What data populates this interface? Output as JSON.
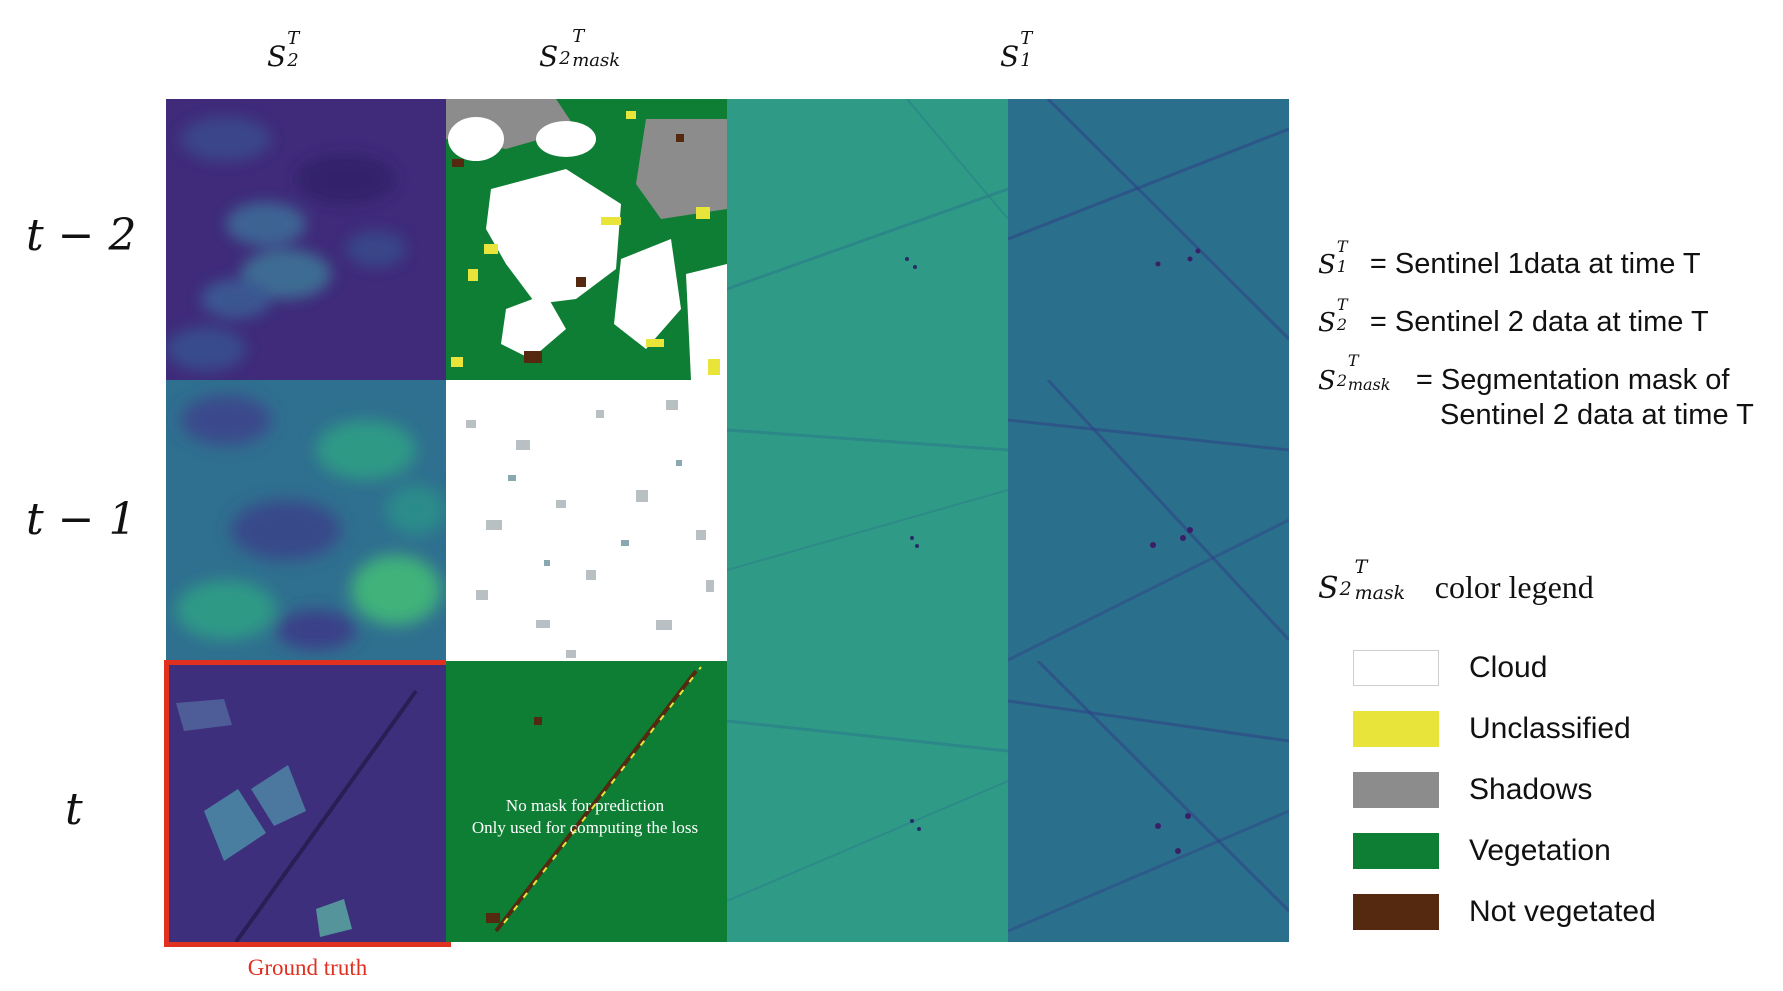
{
  "column_headers": [
    {
      "base": "S",
      "sub": "2",
      "sup": "T",
      "extra": ""
    },
    {
      "base": "S",
      "sub": "2",
      "sup": "T",
      "extra": "mask"
    },
    {
      "base": "S",
      "sub": "1",
      "sup": "T",
      "extra": ""
    }
  ],
  "row_labels": [
    "t − 2",
    "t − 1",
    "t"
  ],
  "ground_truth_label": "Ground truth",
  "mask_note": {
    "line1": "No mask for prediction",
    "line2": "Only used for computing the loss"
  },
  "definitions": [
    {
      "symbol": {
        "base": "S",
        "sub": "1",
        "sup": "T",
        "extra": ""
      },
      "text": "= Sentinel 1data at time T",
      "text2": ""
    },
    {
      "symbol": {
        "base": "S",
        "sub": "2",
        "sup": "T",
        "extra": ""
      },
      "text": "= Sentinel 2 data at time T",
      "text2": ""
    },
    {
      "symbol": {
        "base": "S",
        "sub": "2",
        "sup": "T",
        "extra": "mask"
      },
      "text": "= Segmentation mask of",
      "text2": "Sentinel 2 data at time T"
    }
  ],
  "legend": {
    "title_symbol": {
      "base": "S",
      "sub": "2",
      "sup": "T",
      "extra": "mask"
    },
    "title_text": "color legend",
    "items": [
      {
        "label": "Cloud",
        "color": "#ffffff"
      },
      {
        "label": "Unclassified",
        "color": "#e9e43a"
      },
      {
        "label": "Shadows",
        "color": "#8c8c8c"
      },
      {
        "label": "Vegetation",
        "color": "#0e7e34"
      },
      {
        "label": "Not vegetated",
        "color": "#54290f"
      }
    ]
  },
  "palette": {
    "viridis_dark": "#3f2b7a",
    "viridis_mid": "#2a8c8a",
    "viridis_green": "#3fb27a",
    "s1_teal": "#2f7f8c",
    "highlight_red": "#e03020"
  }
}
